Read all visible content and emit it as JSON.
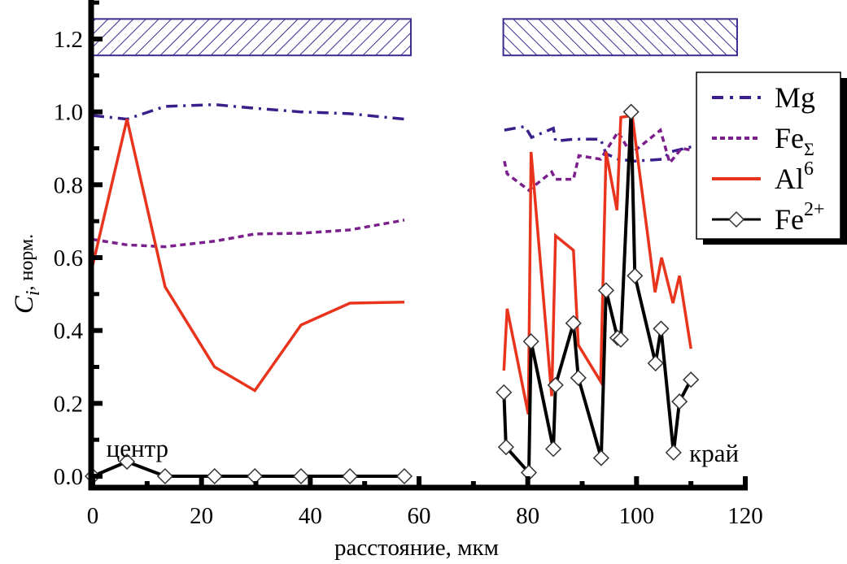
{
  "chart_data": {
    "type": "line",
    "title": "",
    "xlabel": "расстояние, мкм",
    "ylabel": {
      "main": "C",
      "sub": "i",
      "suffix": ", норм."
    },
    "xlim": [
      0,
      120
    ],
    "ylim": [
      -0.03,
      1.3
    ],
    "x_ticks": [
      0,
      20,
      40,
      60,
      80,
      100,
      120
    ],
    "x_tick_labels": [
      "0",
      "20",
      "40",
      "60",
      "80",
      "100",
      "120"
    ],
    "x_minor_ticks": [
      10,
      30,
      50,
      70,
      90,
      110
    ],
    "y_ticks": [
      0.0,
      0.2,
      0.4,
      0.6,
      0.8,
      1.0,
      1.2
    ],
    "y_tick_labels": [
      "0.0",
      "0.2",
      "0.4",
      "0.6",
      "0.8",
      "1.0",
      "1.2"
    ],
    "y_minor_ticks": [
      0.1,
      0.3,
      0.5,
      0.7,
      0.9,
      1.1,
      1.3
    ],
    "grid": false,
    "legend_position": "top-right",
    "annotations": [
      {
        "text": "центр",
        "x": 1,
        "y": 0.06
      },
      {
        "text": "край",
        "x": 110,
        "y": 0.06
      }
    ],
    "zones": [
      {
        "name": "zone-center",
        "x_range": [
          0,
          58.5
        ],
        "y_range": [
          1.155,
          1.255
        ],
        "hatch": "backslash",
        "color": "#3d2b8f"
      },
      {
        "name": "zone-edge",
        "x_range": [
          75.5,
          118.5
        ],
        "y_range": [
          1.155,
          1.255
        ],
        "hatch": "slash",
        "color": "#3d2b8f"
      }
    ],
    "series": [
      {
        "name": "Mg",
        "label": {
          "base": "Mg",
          "sub": "",
          "sup": ""
        },
        "color": "#3a1f8c",
        "style": "dashdot",
        "markers": false,
        "segments": [
          [
            [
              0,
              0.99
            ],
            [
              6.3,
              0.98
            ],
            [
              13.3,
              1.015
            ],
            [
              22.4,
              1.02
            ],
            [
              29.8,
              1.01
            ],
            [
              38.3,
              1.0
            ],
            [
              47.3,
              0.995
            ],
            [
              57.3,
              0.98
            ]
          ],
          [
            [
              75.7,
              0.95
            ],
            [
              79.5,
              0.96
            ],
            [
              80.7,
              0.93
            ],
            [
              84.7,
              0.955
            ],
            [
              85.1,
              0.92
            ],
            [
              88.4,
              0.925
            ],
            [
              93.4,
              0.925
            ],
            [
              94.4,
              0.885
            ],
            [
              96.6,
              0.87
            ],
            [
              99.7,
              0.865
            ],
            [
              104.9,
              0.87
            ],
            [
              106.1,
              0.89
            ],
            [
              110.3,
              0.905
            ]
          ]
        ]
      },
      {
        "name": "FeΣ",
        "label": {
          "base": "Fe",
          "sub": "Σ",
          "sup": ""
        },
        "color": "#7a1f8c",
        "style": "dashed",
        "markers": false,
        "segments": [
          [
            [
              0,
              0.65
            ],
            [
              6.3,
              0.635
            ],
            [
              13.3,
              0.63
            ],
            [
              22.4,
              0.645
            ],
            [
              29.8,
              0.665
            ],
            [
              38.3,
              0.667
            ],
            [
              47.3,
              0.676
            ],
            [
              57.3,
              0.703
            ]
          ],
          [
            [
              75.7,
              0.865
            ],
            [
              76.2,
              0.83
            ],
            [
              80.2,
              0.785
            ],
            [
              84.4,
              0.835
            ],
            [
              85.1,
              0.815
            ],
            [
              88.4,
              0.815
            ],
            [
              89.4,
              0.88
            ],
            [
              93.4,
              0.87
            ],
            [
              96.6,
              0.945
            ],
            [
              99.0,
              0.885
            ],
            [
              104.4,
              0.95
            ],
            [
              106.1,
              0.86
            ],
            [
              108.3,
              0.9
            ],
            [
              110.0,
              0.895
            ]
          ]
        ]
      },
      {
        "name": "Al6",
        "label": {
          "base": "Al",
          "sub": "",
          "sup": "6"
        },
        "color": "#e8341c",
        "style": "solid",
        "markers": false,
        "segments": [
          [
            [
              0,
              0.58
            ],
            [
              6.3,
              0.98
            ],
            [
              13.3,
              0.52
            ],
            [
              22.4,
              0.3
            ],
            [
              29.8,
              0.235
            ],
            [
              38.3,
              0.415
            ],
            [
              47.3,
              0.475
            ],
            [
              57.3,
              0.478
            ]
          ],
          [
            [
              75.6,
              0.29
            ],
            [
              76.2,
              0.46
            ],
            [
              80.1,
              0.17
            ],
            [
              80.6,
              0.89
            ],
            [
              84.4,
              0.22
            ],
            [
              85.1,
              0.66
            ],
            [
              88.4,
              0.62
            ],
            [
              89.3,
              0.36
            ],
            [
              93.4,
              0.26
            ],
            [
              94.4,
              0.89
            ],
            [
              96.4,
              0.73
            ],
            [
              97.1,
              0.985
            ],
            [
              99.2,
              0.99
            ],
            [
              103.4,
              0.505
            ],
            [
              104.6,
              0.6
            ],
            [
              106.7,
              0.475
            ],
            [
              107.9,
              0.55
            ],
            [
              110.0,
              0.35
            ]
          ]
        ]
      },
      {
        "name": "Fe2+",
        "label": {
          "base": "Fe",
          "sub": "",
          "sup": "2+"
        },
        "color": "#000000",
        "style": "solid",
        "markers": true,
        "marker": "open-diamond",
        "segments": [
          [
            [
              0,
              0.0
            ],
            [
              6.3,
              0.04
            ],
            [
              13.3,
              0.0
            ],
            [
              22.4,
              0.0
            ],
            [
              29.8,
              0.0
            ],
            [
              38.3,
              0.0
            ],
            [
              47.3,
              0.0
            ],
            [
              57.3,
              0.0
            ]
          ],
          [
            [
              75.6,
              0.23
            ],
            [
              76.0,
              0.08
            ],
            [
              80.2,
              0.01
            ],
            [
              80.6,
              0.37
            ],
            [
              84.7,
              0.075
            ],
            [
              85.1,
              0.25
            ],
            [
              88.4,
              0.42
            ],
            [
              89.3,
              0.27
            ],
            [
              93.5,
              0.05
            ],
            [
              94.4,
              0.51
            ],
            [
              96.5,
              0.38
            ],
            [
              97.1,
              0.375
            ],
            [
              99.0,
              1.0
            ],
            [
              99.7,
              0.55
            ],
            [
              103.5,
              0.31
            ],
            [
              104.5,
              0.405
            ],
            [
              106.8,
              0.065
            ],
            [
              107.9,
              0.205
            ],
            [
              110.0,
              0.265
            ]
          ]
        ]
      }
    ]
  }
}
